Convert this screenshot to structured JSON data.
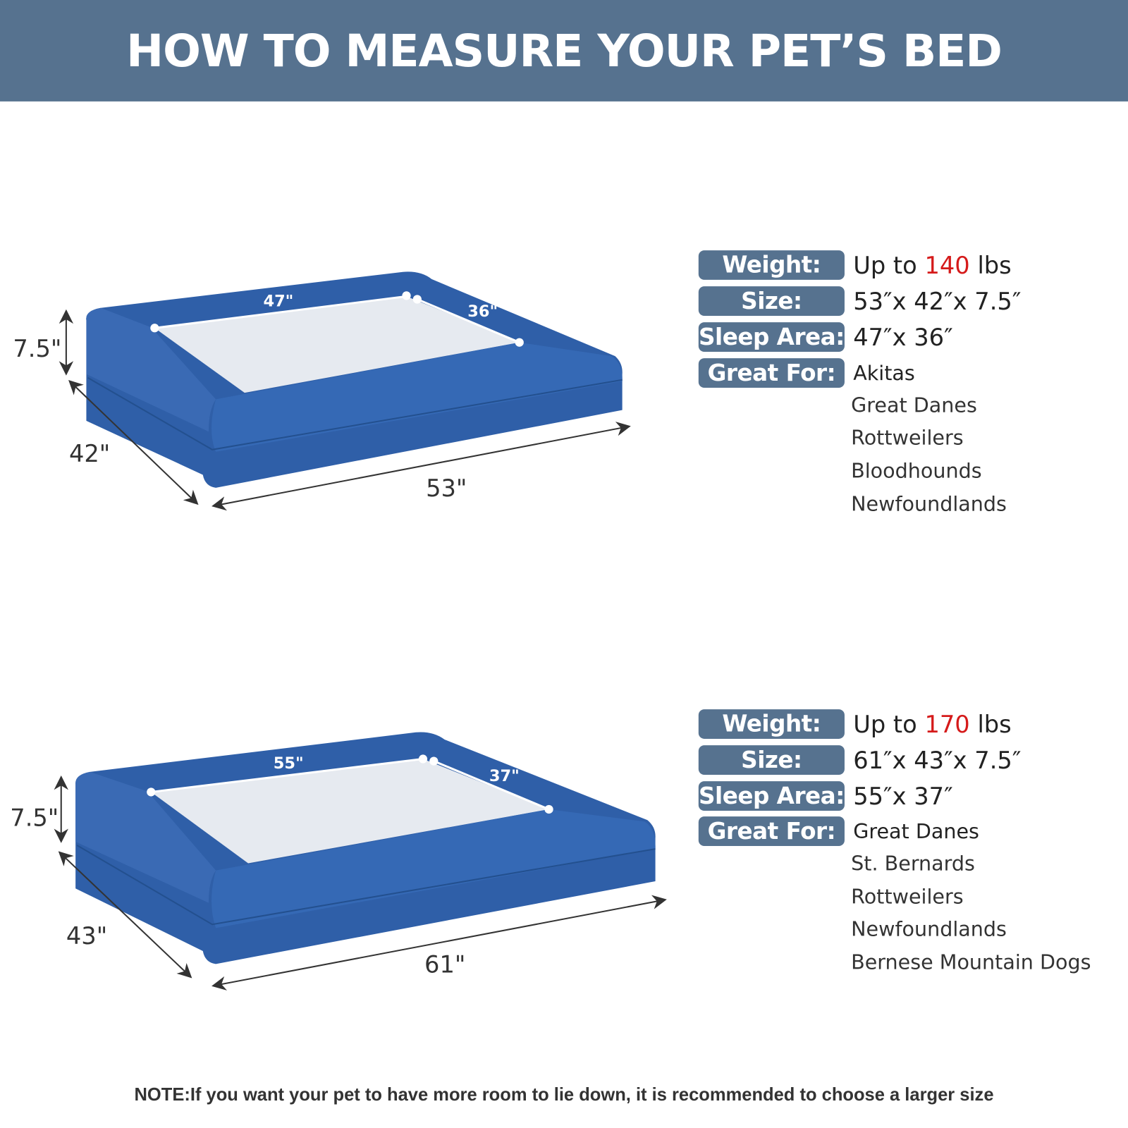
{
  "header": {
    "title": "HOW TO MEASURE YOUR PET’S BED"
  },
  "colors": {
    "header_bg": "#56728f",
    "bed_blue": "#2f5fa8",
    "highlight_red": "#d51a1a"
  },
  "products": [
    {
      "dimensions": {
        "height": "7.5\"",
        "depth": "42\"",
        "width": "53\"",
        "inner_length": "47\"",
        "inner_width": "36\""
      },
      "specs": {
        "weight_label": "Weight:",
        "weight_prefix": "Up to",
        "weight_value": "140",
        "weight_unit": "lbs",
        "size_label": "Size:",
        "size_value": "53″x 42″x 7.5″",
        "sleep_label": "Sleep Area:",
        "sleep_value": "47″x 36″",
        "great_label": "Great For:",
        "great_for": [
          "Akitas",
          "Great Danes",
          "Rottweilers",
          "Bloodhounds",
          "Newfoundlands"
        ]
      }
    },
    {
      "dimensions": {
        "height": "7.5\"",
        "depth": "43\"",
        "width": "61\"",
        "inner_length": "55\"",
        "inner_width": "37\""
      },
      "specs": {
        "weight_label": "Weight:",
        "weight_prefix": "Up to",
        "weight_value": "170",
        "weight_unit": "lbs",
        "size_label": "Size:",
        "size_value": "61″x 43″x 7.5″",
        "sleep_label": "Sleep Area:",
        "sleep_value": "55″x 37″",
        "great_label": "Great For:",
        "great_for": [
          "Great Danes",
          "St. Bernards",
          "Rottweilers",
          "Newfoundlands",
          "Bernese Mountain Dogs"
        ]
      }
    }
  ],
  "note": "NOTE:If you want your pet to have more room to lie down, it is recommended to choose a larger size"
}
